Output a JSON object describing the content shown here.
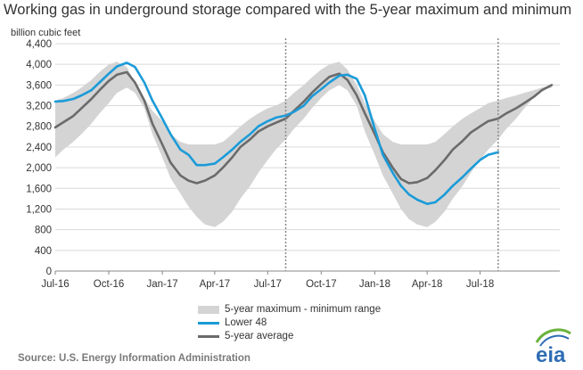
{
  "title": "Working gas in underground storage compared with the 5-year maximum and minimum",
  "source": "Source:  U.S. Energy Information Administration",
  "logo_text": "eia",
  "colors": {
    "band": "#d4d4d4",
    "lower48": "#1b9bd8",
    "avg": "#6b6b6b",
    "divider": "#8a8a8a",
    "logo_blue": "#2f6db5",
    "logo_green": "#6bb33f"
  },
  "chart_data": {
    "type": "line",
    "ylabel": "billion cubic feet",
    "ylim": [
      0,
      4400
    ],
    "yticks": [
      0,
      400,
      800,
      1200,
      1600,
      2000,
      2400,
      2800,
      3200,
      3600,
      4000,
      4400
    ],
    "ytick_labels": [
      "0",
      "400",
      "800",
      "1,200",
      "1,600",
      "2,000",
      "2,400",
      "2,800",
      "3,200",
      "3,600",
      "4,000",
      "4,400"
    ],
    "xticks": [
      "2016-07-01",
      "2016-10-01",
      "2017-01-01",
      "2017-04-01",
      "2017-07-01",
      "2017-10-01",
      "2018-01-01",
      "2018-04-01",
      "2018-07-01"
    ],
    "xtick_labels": [
      "Jul-16",
      "Oct-16",
      "Jan-17",
      "Apr-17",
      "Jul-17",
      "Oct-17",
      "Jan-18",
      "Apr-18",
      "Jul-18"
    ],
    "xlim": [
      "2016-07-01",
      "2018-11-15"
    ],
    "grid": true,
    "legend_position": "bottom",
    "dividers": [
      "2017-08-01",
      "2018-08-01"
    ],
    "series": [
      {
        "name": "5-year maximum - minimum range",
        "kind": "band",
        "x": [
          "2016-07-01",
          "2016-07-15",
          "2016-08-01",
          "2016-08-15",
          "2016-09-01",
          "2016-09-15",
          "2016-10-01",
          "2016-10-15",
          "2016-11-01",
          "2016-11-15",
          "2016-12-01",
          "2016-12-15",
          "2017-01-01",
          "2017-01-15",
          "2017-02-01",
          "2017-02-15",
          "2017-03-01",
          "2017-03-15",
          "2017-04-01",
          "2017-04-15",
          "2017-05-01",
          "2017-05-15",
          "2017-06-01",
          "2017-06-15",
          "2017-07-01",
          "2017-07-15",
          "2017-08-01",
          "2017-08-15",
          "2017-09-01",
          "2017-09-15",
          "2017-10-01",
          "2017-10-15",
          "2017-11-01",
          "2017-11-15",
          "2017-12-01",
          "2017-12-15",
          "2018-01-01",
          "2018-01-15",
          "2018-02-01",
          "2018-02-15",
          "2018-03-01",
          "2018-03-15",
          "2018-04-01",
          "2018-04-15",
          "2018-05-01",
          "2018-05-15",
          "2018-06-01",
          "2018-06-15",
          "2018-07-01",
          "2018-07-15",
          "2018-08-01",
          "2018-08-15",
          "2018-09-01",
          "2018-09-15",
          "2018-10-01",
          "2018-10-15",
          "2018-11-01"
        ],
        "low": [
          2200,
          2350,
          2500,
          2650,
          2850,
          3050,
          3250,
          3450,
          3550,
          3450,
          3150,
          2650,
          2200,
          1800,
          1500,
          1250,
          1050,
          900,
          850,
          950,
          1150,
          1400,
          1650,
          1900,
          2150,
          2350,
          2550,
          2750,
          2950,
          3150,
          3350,
          3500,
          3600,
          3500,
          3200,
          2700,
          2250,
          1850,
          1500,
          1200,
          1000,
          900,
          850,
          950,
          1150,
          1400,
          1650,
          1900,
          2150,
          2350,
          2550,
          2750,
          2950,
          3150,
          3350,
          3500,
          3550
        ],
        "high": [
          3300,
          3350,
          3450,
          3550,
          3700,
          3850,
          4000,
          4050,
          3950,
          3650,
          3350,
          3100,
          2900,
          2650,
          2500,
          2450,
          2450,
          2450,
          2450,
          2500,
          2650,
          2800,
          2950,
          3050,
          3150,
          3200,
          3300,
          3450,
          3600,
          3750,
          3900,
          4000,
          4050,
          3900,
          3600,
          3250,
          2900,
          2650,
          2500,
          2450,
          2450,
          2450,
          2450,
          2500,
          2650,
          2800,
          2950,
          3050,
          3150,
          3250,
          3300,
          3350,
          3400,
          3450,
          3500,
          3550,
          3600
        ]
      },
      {
        "name": "Lower 48",
        "kind": "line",
        "x": [
          "2016-07-01",
          "2016-07-15",
          "2016-08-01",
          "2016-08-15",
          "2016-09-01",
          "2016-09-15",
          "2016-10-01",
          "2016-10-15",
          "2016-11-01",
          "2016-11-15",
          "2016-12-01",
          "2016-12-15",
          "2017-01-01",
          "2017-01-15",
          "2017-02-01",
          "2017-02-15",
          "2017-03-01",
          "2017-03-15",
          "2017-04-01",
          "2017-04-15",
          "2017-05-01",
          "2017-05-15",
          "2017-06-01",
          "2017-06-15",
          "2017-07-01",
          "2017-07-15",
          "2017-08-01",
          "2017-08-15",
          "2017-09-01",
          "2017-09-15",
          "2017-10-01",
          "2017-10-15",
          "2017-11-01",
          "2017-11-15",
          "2017-12-01",
          "2017-12-15",
          "2018-01-01",
          "2018-01-15",
          "2018-02-01",
          "2018-02-15",
          "2018-03-01",
          "2018-03-15",
          "2018-04-01",
          "2018-04-15",
          "2018-05-01",
          "2018-05-15",
          "2018-06-01",
          "2018-06-15",
          "2018-07-01",
          "2018-07-15",
          "2018-08-01"
        ],
        "y": [
          3280,
          3290,
          3330,
          3400,
          3500,
          3650,
          3820,
          3960,
          4030,
          3950,
          3650,
          3300,
          2950,
          2650,
          2350,
          2250,
          2050,
          2050,
          2080,
          2200,
          2350,
          2500,
          2650,
          2800,
          2900,
          2970,
          3010,
          3080,
          3200,
          3380,
          3520,
          3650,
          3780,
          3800,
          3720,
          3400,
          2750,
          2250,
          1900,
          1650,
          1480,
          1380,
          1300,
          1330,
          1480,
          1650,
          1820,
          1980,
          2150,
          2250,
          2300
        ]
      },
      {
        "name": "5-year average",
        "kind": "line",
        "x": [
          "2016-07-01",
          "2016-07-15",
          "2016-08-01",
          "2016-08-15",
          "2016-09-01",
          "2016-09-15",
          "2016-10-01",
          "2016-10-15",
          "2016-11-01",
          "2016-11-15",
          "2016-12-01",
          "2016-12-15",
          "2017-01-01",
          "2017-01-15",
          "2017-02-01",
          "2017-02-15",
          "2017-03-01",
          "2017-03-15",
          "2017-04-01",
          "2017-04-15",
          "2017-05-01",
          "2017-05-15",
          "2017-06-01",
          "2017-06-15",
          "2017-07-01",
          "2017-07-15",
          "2017-08-01",
          "2017-08-15",
          "2017-09-01",
          "2017-09-15",
          "2017-10-01",
          "2017-10-15",
          "2017-11-01",
          "2017-11-15",
          "2017-12-01",
          "2017-12-15",
          "2018-01-01",
          "2018-01-15",
          "2018-02-01",
          "2018-02-15",
          "2018-03-01",
          "2018-03-15",
          "2018-04-01",
          "2018-04-15",
          "2018-05-01",
          "2018-05-15",
          "2018-06-01",
          "2018-06-15",
          "2018-07-01",
          "2018-07-15",
          "2018-08-01",
          "2018-08-15",
          "2018-09-01",
          "2018-09-15",
          "2018-10-01",
          "2018-10-15",
          "2018-11-01"
        ],
        "y": [
          2780,
          2880,
          3000,
          3150,
          3330,
          3500,
          3680,
          3800,
          3850,
          3650,
          3300,
          2850,
          2450,
          2100,
          1850,
          1750,
          1700,
          1750,
          1850,
          2000,
          2200,
          2400,
          2550,
          2700,
          2800,
          2870,
          2950,
          3100,
          3280,
          3450,
          3620,
          3760,
          3820,
          3700,
          3400,
          3050,
          2650,
          2300,
          2000,
          1780,
          1700,
          1720,
          1800,
          1950,
          2150,
          2350,
          2520,
          2680,
          2800,
          2900,
          2950,
          3050,
          3150,
          3250,
          3370,
          3500,
          3600
        ]
      }
    ]
  }
}
